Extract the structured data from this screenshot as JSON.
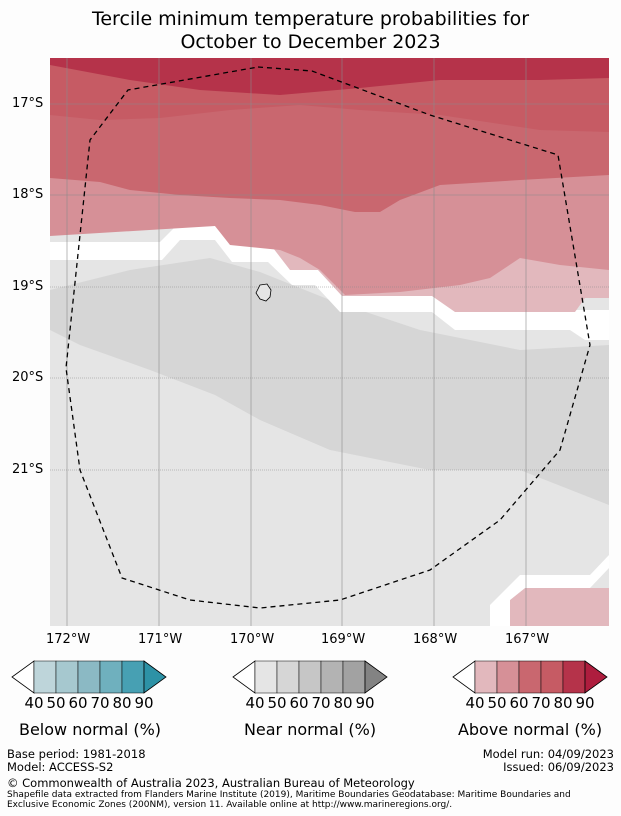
{
  "title_line1": "Tercile minimum temperature probabilities for",
  "title_line2": "October to December 2023",
  "lat_labels": [
    "17°S",
    "18°S",
    "19°S",
    "20°S",
    "21°S"
  ],
  "lon_labels": [
    "172°W",
    "171°W",
    "170°W",
    "169°W",
    "168°W",
    "167°W"
  ],
  "colorbars": {
    "below": {
      "label": "Below normal (%)",
      "ticks": [
        "40",
        "50",
        "60",
        "70",
        "80",
        "90"
      ],
      "colors": [
        "#ffffff",
        "#bed5da",
        "#a6c8cf",
        "#8bb9c4",
        "#6fb0be",
        "#47a0b3",
        "#2d92a6"
      ]
    },
    "near": {
      "label": "Near normal (%)",
      "ticks": [
        "40",
        "50",
        "60",
        "70",
        "80",
        "90"
      ],
      "colors": [
        "#ffffff",
        "#e5e5e5",
        "#d6d6d6",
        "#c6c6c6",
        "#b3b3b3",
        "#a2a2a2",
        "#838383"
      ]
    },
    "above": {
      "label": "Above normal (%)",
      "ticks": [
        "40",
        "50",
        "60",
        "70",
        "80",
        "90"
      ],
      "colors": [
        "#ffffff",
        "#e2b8bd",
        "#d69097",
        "#c9676f",
        "#c65b64",
        "#b5334a",
        "#ae1d3e"
      ]
    }
  },
  "footer": {
    "base_period": "Base period: 1981-2018",
    "model": "Model: ACCESS-S2",
    "model_run": "Model run: 04/09/2023",
    "issued": "Issued: 06/09/2023",
    "copyright": "© Commonwealth of Australia 2023, Australian Bureau of Meteorology",
    "shapefile_line1": "Shapefile data extracted from Flanders Marine Institute (2019), Maritime Boundaries Geodatabase: Maritime Boundaries and",
    "shapefile_line2": "Exclusive Economic Zones (200NM), version 11. Available online at http://www.marineregions.org/."
  }
}
